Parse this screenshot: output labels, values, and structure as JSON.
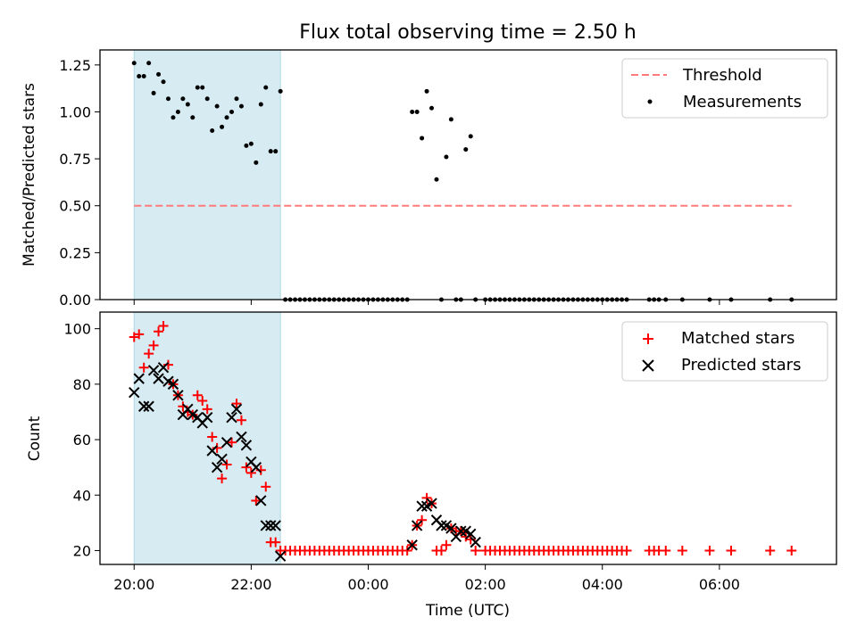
{
  "chart_data": [
    {
      "type": "scatter",
      "title": "Flux total observing time = 2.50 h",
      "xlabel": "",
      "ylabel": "Matched/Predicted stars",
      "ylim": [
        0,
        1.33
      ],
      "yticks": [
        "0.00",
        "0.25",
        "0.50",
        "0.75",
        "1.00",
        "1.25"
      ],
      "shaded_x": [
        "20:00",
        "22:30"
      ],
      "grid": false,
      "legend_position": "upper-right",
      "series": [
        {
          "name": "Threshold",
          "kind": "dashed-line",
          "color": "#ff7b7b",
          "x": [
            "20:00",
            "07:14"
          ],
          "y": [
            0.5,
            0.5
          ]
        },
        {
          "name": "Measurements",
          "kind": "dot",
          "color": "#000000",
          "x": [
            "20:00",
            "20:05",
            "20:10",
            "20:15",
            "20:20",
            "20:25",
            "20:30",
            "20:35",
            "20:40",
            "20:45",
            "20:50",
            "20:55",
            "21:00",
            "21:05",
            "21:10",
            "21:15",
            "21:20",
            "21:25",
            "21:30",
            "21:35",
            "21:40",
            "21:45",
            "21:50",
            "21:55",
            "22:00",
            "22:05",
            "22:10",
            "22:15",
            "22:20",
            "22:25",
            "22:30",
            "22:35",
            "22:40",
            "22:45",
            "22:50",
            "22:55",
            "23:00",
            "23:05",
            "23:10",
            "23:15",
            "23:20",
            "23:25",
            "23:30",
            "23:35",
            "23:40",
            "23:45",
            "23:50",
            "23:55",
            "00:00",
            "00:05",
            "00:10",
            "00:15",
            "00:20",
            "00:25",
            "00:30",
            "00:35",
            "00:40",
            "00:45",
            "00:50",
            "00:55",
            "01:00",
            "01:05",
            "01:10",
            "01:15",
            "01:20",
            "01:25",
            "01:30",
            "01:35",
            "01:40",
            "01:45",
            "01:50",
            "02:00",
            "02:05",
            "02:10",
            "02:15",
            "02:20",
            "02:25",
            "02:30",
            "02:35",
            "02:40",
            "02:45",
            "02:50",
            "02:55",
            "03:00",
            "03:05",
            "03:10",
            "03:15",
            "03:20",
            "03:25",
            "03:30",
            "03:35",
            "03:40",
            "03:45",
            "03:50",
            "03:55",
            "04:00",
            "04:05",
            "04:10",
            "04:15",
            "04:20",
            "04:25",
            "04:48",
            "04:53",
            "04:58",
            "05:05",
            "05:22",
            "05:50",
            "06:12",
            "06:52",
            "07:14"
          ],
          "y": [
            1.26,
            1.19,
            1.19,
            1.26,
            1.1,
            1.2,
            1.16,
            1.07,
            0.97,
            1.0,
            1.07,
            1.04,
            0.97,
            1.13,
            1.13,
            1.07,
            0.9,
            1.03,
            0.92,
            0.97,
            1.0,
            1.07,
            1.03,
            0.82,
            0.83,
            0.73,
            1.04,
            1.13,
            0.79,
            0.79,
            1.11,
            0.0,
            0.0,
            0.0,
            0.0,
            0.0,
            0.0,
            0.0,
            0.0,
            0.0,
            0.0,
            0.0,
            0.0,
            0.0,
            0.0,
            0.0,
            0.0,
            0.0,
            0.0,
            0.0,
            0.0,
            0.0,
            0.0,
            0.0,
            0.0,
            0.0,
            0.0,
            1.0,
            1.0,
            0.86,
            1.11,
            1.02,
            0.64,
            0.0,
            0.76,
            0.96,
            0.0,
            0.0,
            0.8,
            0.87,
            0.0,
            0.0,
            0.0,
            0.0,
            0.0,
            0.0,
            0.0,
            0.0,
            0.0,
            0.0,
            0.0,
            0.0,
            0.0,
            0.0,
            0.0,
            0.0,
            0.0,
            0.0,
            0.0,
            0.0,
            0.0,
            0.0,
            0.0,
            0.0,
            0.0,
            0.0,
            0.0,
            0.0,
            0.0,
            0.0,
            0.0,
            0.0,
            0.0,
            0.0,
            0.0,
            0.0,
            0.0,
            0.0,
            0.0,
            0.0
          ]
        }
      ]
    },
    {
      "type": "scatter",
      "title": "",
      "xlabel": "Time (UTC)",
      "ylabel": "Count",
      "ylim": [
        15,
        106
      ],
      "yticks": [
        "20",
        "40",
        "60",
        "80",
        "100"
      ],
      "xlim": [
        "19:25",
        "08:00"
      ],
      "xticks": [
        "20:00",
        "22:00",
        "00:00",
        "02:00",
        "04:00",
        "06:00"
      ],
      "shaded_x": [
        "20:00",
        "22:30"
      ],
      "grid": false,
      "legend_position": "upper-right",
      "series": [
        {
          "name": "Matched stars",
          "kind": "plus",
          "color": "#ff0000",
          "x": [
            "20:00",
            "20:05",
            "20:10",
            "20:15",
            "20:20",
            "20:25",
            "20:30",
            "20:35",
            "20:40",
            "20:45",
            "20:50",
            "20:55",
            "21:00",
            "21:05",
            "21:10",
            "21:15",
            "21:20",
            "21:25",
            "21:30",
            "21:35",
            "21:40",
            "21:45",
            "21:50",
            "21:55",
            "22:00",
            "22:05",
            "22:10",
            "22:15",
            "22:20",
            "22:25",
            "22:30",
            "22:35",
            "22:40",
            "22:45",
            "22:50",
            "22:55",
            "23:00",
            "23:05",
            "23:10",
            "23:15",
            "23:20",
            "23:25",
            "23:30",
            "23:35",
            "23:40",
            "23:45",
            "23:50",
            "23:55",
            "00:00",
            "00:05",
            "00:10",
            "00:15",
            "00:20",
            "00:25",
            "00:30",
            "00:35",
            "00:40",
            "00:45",
            "00:50",
            "00:55",
            "01:00",
            "01:05",
            "01:10",
            "01:15",
            "01:20",
            "01:25",
            "01:30",
            "01:35",
            "01:40",
            "01:45",
            "01:50",
            "02:00",
            "02:05",
            "02:10",
            "02:15",
            "02:20",
            "02:25",
            "02:30",
            "02:35",
            "02:40",
            "02:45",
            "02:50",
            "02:55",
            "03:00",
            "03:05",
            "03:10",
            "03:15",
            "03:20",
            "03:25",
            "03:30",
            "03:35",
            "03:40",
            "03:45",
            "03:50",
            "03:55",
            "04:00",
            "04:05",
            "04:10",
            "04:15",
            "04:20",
            "04:25",
            "04:48",
            "04:53",
            "04:58",
            "05:05",
            "05:22",
            "05:50",
            "06:12",
            "06:52",
            "07:14"
          ],
          "y": [
            97,
            98,
            86,
            91,
            94,
            99,
            101,
            87,
            80,
            76,
            72,
            70,
            69,
            76,
            74,
            71,
            61,
            57,
            46,
            51,
            59,
            73,
            67,
            50,
            48,
            38,
            49,
            43,
            23,
            23,
            20,
            20,
            20,
            20,
            20,
            20,
            20,
            20,
            20,
            20,
            20,
            20,
            20,
            20,
            20,
            20,
            20,
            20,
            20,
            20,
            20,
            20,
            20,
            20,
            20,
            20,
            20,
            22,
            29,
            31,
            39,
            37,
            20,
            20,
            22,
            28,
            27,
            27,
            25,
            24,
            20,
            20,
            20,
            20,
            20,
            20,
            20,
            20,
            20,
            20,
            20,
            20,
            20,
            20,
            20,
            20,
            20,
            20,
            20,
            20,
            20,
            20,
            20,
            20,
            20,
            20,
            20,
            20,
            20,
            20,
            20,
            20,
            20,
            20,
            20,
            20,
            20,
            20,
            20,
            20
          ]
        },
        {
          "name": "Predicted stars",
          "kind": "cross",
          "color": "#000000",
          "x": [
            "20:00",
            "20:05",
            "20:10",
            "20:15",
            "20:20",
            "20:25",
            "20:30",
            "20:35",
            "20:40",
            "20:45",
            "20:50",
            "20:55",
            "21:00",
            "21:05",
            "21:10",
            "21:15",
            "21:20",
            "21:25",
            "21:30",
            "21:35",
            "21:40",
            "21:45",
            "21:50",
            "21:55",
            "22:00",
            "22:05",
            "22:10",
            "22:15",
            "22:20",
            "22:25",
            "22:30",
            "00:45",
            "00:50",
            "00:55",
            "01:00",
            "01:05",
            "01:10",
            "01:15",
            "01:20",
            "01:25",
            "01:30",
            "01:35",
            "01:40",
            "01:45",
            "01:50"
          ],
          "y": [
            77,
            82,
            72,
            72,
            85,
            82,
            86,
            81,
            80,
            76,
            69,
            71,
            69,
            68,
            66,
            68,
            56,
            50,
            53,
            59,
            68,
            71,
            61,
            58,
            52,
            50,
            38,
            29,
            29,
            29,
            18,
            22,
            29,
            36,
            36,
            37,
            31,
            29,
            29,
            28,
            25,
            27,
            27,
            26,
            23
          ]
        }
      ]
    }
  ]
}
